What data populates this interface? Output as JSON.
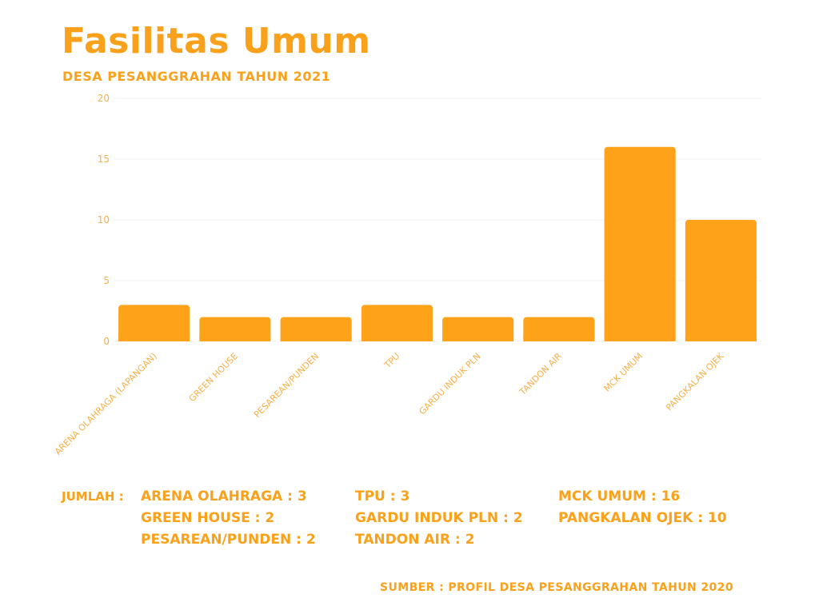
{
  "header": {
    "title": "Fasilitas Umum",
    "subtitle": "DESA PESANGGRAHAN TAHUN 2021"
  },
  "chart_data": {
    "type": "bar",
    "categories": [
      "ARENA OLAHRAGA (LAPANGAN)",
      "GREEN HOUSE",
      "PESAREAN/PUNDEN",
      "TPU",
      "GARDU INDUK PLN",
      "TANDON AIR",
      "MCK UMUM",
      "PANGKALAN OJEK"
    ],
    "values": [
      3,
      2,
      2,
      3,
      2,
      2,
      16,
      10
    ],
    "ylim": [
      0,
      20
    ],
    "yticks": [
      0,
      5,
      10,
      15,
      20
    ],
    "grid": true,
    "bar_color": "#fda219"
  },
  "summary": {
    "lead": "JUMLAH :",
    "columns": [
      [
        "ARENA OLAHRAGA : 3",
        "GREEN HOUSE : 2",
        "PESAREAN/PUNDEN : 2"
      ],
      [
        "TPU : 3",
        "GARDU INDUK PLN : 2",
        "TANDON AIR : 2"
      ],
      [
        "MCK UMUM : 16",
        "PANGKALAN OJEK : 10"
      ]
    ]
  },
  "source": "SUMBER : PROFIL DESA PESANGGRAHAN TAHUN 2020"
}
